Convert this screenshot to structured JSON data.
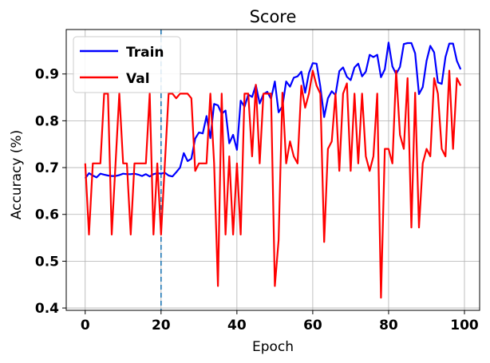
{
  "chart_data": {
    "type": "line",
    "title": "Score",
    "xlabel": "Epoch",
    "ylabel": "Accuracy (%)",
    "xlim": [
      -5,
      104
    ],
    "ylim": [
      0.395,
      0.995
    ],
    "xticks": [
      0,
      20,
      40,
      60,
      80,
      100
    ],
    "yticks": [
      0.4,
      0.5,
      0.6,
      0.7,
      0.8,
      0.9
    ],
    "xtick_labels": [
      "0",
      "20",
      "40",
      "60",
      "80",
      "100"
    ],
    "ytick_labels": [
      "0.4",
      "0.5",
      "0.6",
      "0.7",
      "0.8",
      "0.9"
    ],
    "grid": true,
    "legend_position": "top-left",
    "vline": {
      "x": 20,
      "style": "dashed",
      "color": "#1f77b4"
    },
    "x": [
      0,
      1,
      2,
      3,
      4,
      5,
      6,
      7,
      8,
      9,
      10,
      11,
      12,
      13,
      14,
      15,
      16,
      17,
      18,
      19,
      20,
      21,
      22,
      23,
      24,
      25,
      26,
      27,
      28,
      29,
      30,
      31,
      32,
      33,
      34,
      35,
      36,
      37,
      38,
      39,
      40,
      41,
      42,
      43,
      44,
      45,
      46,
      47,
      48,
      49,
      50,
      51,
      52,
      53,
      54,
      55,
      56,
      57,
      58,
      59,
      60,
      61,
      62,
      63,
      64,
      65,
      66,
      67,
      68,
      69,
      70,
      71,
      72,
      73,
      74,
      75,
      76,
      77,
      78,
      79,
      80,
      81,
      82,
      83,
      84,
      85,
      86,
      87,
      88,
      89,
      90,
      91,
      92,
      93,
      94,
      95,
      96,
      97,
      98,
      99
    ],
    "series": [
      {
        "name": "Train",
        "color": "#0000ff",
        "values": [
          0.677,
          0.688,
          0.683,
          0.679,
          0.687,
          0.685,
          0.683,
          0.682,
          0.682,
          0.684,
          0.687,
          0.686,
          0.686,
          0.687,
          0.685,
          0.682,
          0.686,
          0.681,
          0.686,
          0.688,
          0.687,
          0.689,
          0.683,
          0.681,
          0.69,
          0.7,
          0.731,
          0.714,
          0.719,
          0.762,
          0.775,
          0.773,
          0.81,
          0.763,
          0.836,
          0.833,
          0.815,
          0.822,
          0.752,
          0.77,
          0.738,
          0.843,
          0.83,
          0.856,
          0.851,
          0.876,
          0.837,
          0.857,
          0.862,
          0.847,
          0.884,
          0.818,
          0.831,
          0.884,
          0.873,
          0.892,
          0.895,
          0.905,
          0.86,
          0.902,
          0.923,
          0.922,
          0.873,
          0.808,
          0.848,
          0.863,
          0.855,
          0.906,
          0.914,
          0.894,
          0.887,
          0.914,
          0.922,
          0.895,
          0.905,
          0.941,
          0.936,
          0.941,
          0.893,
          0.91,
          0.967,
          0.916,
          0.9,
          0.915,
          0.964,
          0.966,
          0.966,
          0.944,
          0.857,
          0.872,
          0.928,
          0.96,
          0.946,
          0.882,
          0.879,
          0.936,
          0.965,
          0.965,
          0.928,
          0.91
        ]
      },
      {
        "name": "Val",
        "color": "#ff0000",
        "values": [
          0.709,
          0.557,
          0.709,
          0.709,
          0.709,
          0.858,
          0.858,
          0.557,
          0.709,
          0.858,
          0.709,
          0.709,
          0.557,
          0.709,
          0.709,
          0.709,
          0.709,
          0.858,
          0.557,
          0.709,
          0.557,
          0.709,
          0.858,
          0.858,
          0.848,
          0.858,
          0.858,
          0.858,
          0.848,
          0.693,
          0.709,
          0.709,
          0.709,
          0.858,
          0.709,
          0.447,
          0.858,
          0.557,
          0.724,
          0.557,
          0.709,
          0.557,
          0.858,
          0.858,
          0.724,
          0.877,
          0.709,
          0.858,
          0.858,
          0.858,
          0.447,
          0.545,
          0.86,
          0.709,
          0.756,
          0.724,
          0.709,
          0.875,
          0.828,
          0.858,
          0.907,
          0.875,
          0.858,
          0.541,
          0.74,
          0.756,
          0.858,
          0.693,
          0.858,
          0.88,
          0.693,
          0.858,
          0.709,
          0.858,
          0.724,
          0.693,
          0.724,
          0.858,
          0.422,
          0.74,
          0.74,
          0.709,
          0.907,
          0.77,
          0.74,
          0.891,
          0.572,
          0.86,
          0.572,
          0.709,
          0.74,
          0.724,
          0.891,
          0.858,
          0.74,
          0.724,
          0.907,
          0.74,
          0.891,
          0.875
        ]
      }
    ]
  }
}
